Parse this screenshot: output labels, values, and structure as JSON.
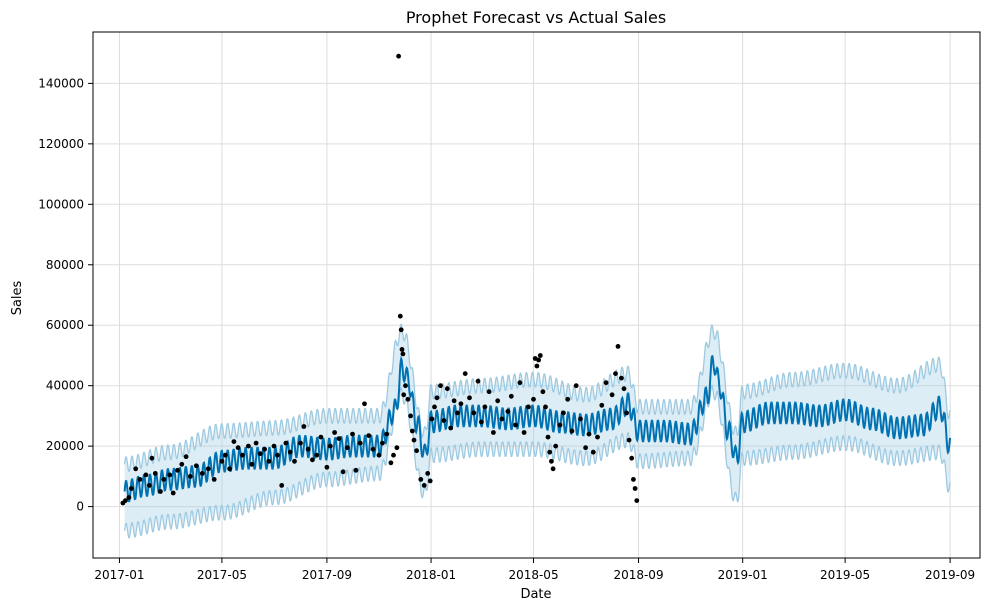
{
  "chart_data": {
    "type": "line",
    "title": "Prophet Forecast vs Actual Sales",
    "xlabel": "Date",
    "ylabel": "Sales",
    "x_ticks": [
      "2017-01",
      "2017-05",
      "2017-09",
      "2018-01",
      "2018-05",
      "2018-09",
      "2019-01",
      "2019-05",
      "2019-09"
    ],
    "y_ticks": [
      "0",
      "20000",
      "40000",
      "60000",
      "80000",
      "100000",
      "120000",
      "140000"
    ],
    "xlim": [
      "2016-12-01",
      "2019-10-06"
    ],
    "ylim": [
      -17000,
      157000
    ],
    "grid": true,
    "colors": {
      "forecast": "#0072B2",
      "interval": "#9ecae1",
      "actual": "#000000",
      "grid": "#dddddd"
    },
    "series": [
      {
        "name": "",
        "kind": "forecast-line",
        "x": [
          "2017-01-07",
          "2017-02-01",
          "2017-03-01",
          "2017-04-01",
          "2017-05-01",
          "2017-06-01",
          "2017-07-01",
          "2017-08-01",
          "2017-09-01",
          "2017-10-01",
          "2017-11-01",
          "2017-11-20",
          "2017-11-28",
          "2017-12-05",
          "2017-12-15",
          "2017-12-25",
          "2018-01-01",
          "2018-02-01",
          "2018-03-01",
          "2018-04-01",
          "2018-05-01",
          "2018-06-01",
          "2018-07-01",
          "2018-08-01",
          "2018-08-20",
          "2018-09-01",
          "2018-10-01",
          "2018-11-01",
          "2018-11-20",
          "2018-11-28",
          "2018-12-05",
          "2018-12-15",
          "2018-12-25",
          "2019-01-01",
          "2019-02-01",
          "2019-03-01",
          "2019-04-01",
          "2019-05-01",
          "2019-06-01",
          "2019-07-01",
          "2019-08-01",
          "2019-08-20",
          "2019-09-01"
        ],
        "y": [
          5000,
          7000,
          9000,
          10000,
          15000,
          16000,
          16000,
          20000,
          19000,
          20000,
          20000,
          32000,
          46000,
          42000,
          28000,
          17000,
          28000,
          30000,
          30000,
          29000,
          30000,
          28000,
          27000,
          29000,
          34000,
          25000,
          25000,
          24000,
          36000,
          48000,
          40000,
          25000,
          16000,
          28000,
          31000,
          31000,
          30000,
          32000,
          29000,
          26000,
          27000,
          33000,
          20000
        ]
      },
      {
        "name": "",
        "kind": "interval-upper",
        "x": [
          "2017-01-07",
          "2017-03-01",
          "2017-05-01",
          "2017-07-01",
          "2017-09-01",
          "2017-11-01",
          "2017-11-28",
          "2017-12-25",
          "2018-01-01",
          "2018-03-01",
          "2018-05-01",
          "2018-07-01",
          "2018-08-20",
          "2018-09-01",
          "2018-11-01",
          "2018-11-28",
          "2018-12-25",
          "2019-01-01",
          "2019-03-01",
          "2019-05-01",
          "2019-07-01",
          "2019-08-20",
          "2019-09-01"
        ],
        "y": [
          14000,
          18000,
          25000,
          26000,
          30000,
          30000,
          58000,
          24000,
          38000,
          40000,
          42000,
          37000,
          44000,
          33000,
          33000,
          58000,
          24000,
          38000,
          42000,
          45000,
          40000,
          47000,
          30000
        ]
      },
      {
        "name": "",
        "kind": "interval-lower",
        "x": [
          "2017-01-07",
          "2017-03-01",
          "2017-05-01",
          "2017-07-01",
          "2017-09-01",
          "2017-11-01",
          "2017-11-28",
          "2017-12-25",
          "2018-01-01",
          "2018-03-01",
          "2018-05-01",
          "2018-07-01",
          "2018-08-20",
          "2018-09-01",
          "2018-11-01",
          "2018-11-28",
          "2018-12-25",
          "2019-01-01",
          "2019-03-01",
          "2019-05-01",
          "2019-07-01",
          "2019-08-20",
          "2019-09-01"
        ],
        "y": [
          -8000,
          -5000,
          -2000,
          3000,
          9000,
          11000,
          37000,
          4000,
          17000,
          19000,
          19000,
          16000,
          22000,
          15000,
          16000,
          38000,
          2000,
          16000,
          18000,
          21000,
          16000,
          18000,
          6000
        ]
      },
      {
        "name": "",
        "kind": "actual-points",
        "points": [
          [
            "2017-01-05",
            1200
          ],
          [
            "2017-01-08",
            2000
          ],
          [
            "2017-01-12",
            3000
          ],
          [
            "2017-01-15",
            6000
          ],
          [
            "2017-01-20",
            12500
          ],
          [
            "2017-01-25",
            9000
          ],
          [
            "2017-02-01",
            10500
          ],
          [
            "2017-02-05",
            7000
          ],
          [
            "2017-02-08",
            16000
          ],
          [
            "2017-02-12",
            11000
          ],
          [
            "2017-02-18",
            5000
          ],
          [
            "2017-02-22",
            9000
          ],
          [
            "2017-03-01",
            10500
          ],
          [
            "2017-03-05",
            4500
          ],
          [
            "2017-03-10",
            12000
          ],
          [
            "2017-03-15",
            14000
          ],
          [
            "2017-03-20",
            16500
          ],
          [
            "2017-03-25",
            10000
          ],
          [
            "2017-04-01",
            13500
          ],
          [
            "2017-04-08",
            11000
          ],
          [
            "2017-04-15",
            12500
          ],
          [
            "2017-04-22",
            9000
          ],
          [
            "2017-05-01",
            15000
          ],
          [
            "2017-05-05",
            17000
          ],
          [
            "2017-05-10",
            12500
          ],
          [
            "2017-05-15",
            21500
          ],
          [
            "2017-05-20",
            19500
          ],
          [
            "2017-05-25",
            17000
          ],
          [
            "2017-06-01",
            20000
          ],
          [
            "2017-06-05",
            14000
          ],
          [
            "2017-06-10",
            21000
          ],
          [
            "2017-06-15",
            17500
          ],
          [
            "2017-06-20",
            19000
          ],
          [
            "2017-06-25",
            15000
          ],
          [
            "2017-07-01",
            20000
          ],
          [
            "2017-07-05",
            17000
          ],
          [
            "2017-07-10",
            7000
          ],
          [
            "2017-07-15",
            21000
          ],
          [
            "2017-07-20",
            18000
          ],
          [
            "2017-07-25",
            15000
          ],
          [
            "2017-08-01",
            21000
          ],
          [
            "2017-08-05",
            26500
          ],
          [
            "2017-08-10",
            19000
          ],
          [
            "2017-08-15",
            15500
          ],
          [
            "2017-08-20",
            17000
          ],
          [
            "2017-08-25",
            23000
          ],
          [
            "2017-09-01",
            13000
          ],
          [
            "2017-09-05",
            20000
          ],
          [
            "2017-09-10",
            24500
          ],
          [
            "2017-09-15",
            22500
          ],
          [
            "2017-09-20",
            11500
          ],
          [
            "2017-09-25",
            19500
          ],
          [
            "2017-10-01",
            24000
          ],
          [
            "2017-10-05",
            12000
          ],
          [
            "2017-10-10",
            21000
          ],
          [
            "2017-10-15",
            34000
          ],
          [
            "2017-10-20",
            23500
          ],
          [
            "2017-10-25",
            19000
          ],
          [
            "2017-11-01",
            17000
          ],
          [
            "2017-11-05",
            21000
          ],
          [
            "2017-11-10",
            24000
          ],
          [
            "2017-11-15",
            14500
          ],
          [
            "2017-11-18",
            17000
          ],
          [
            "2017-11-22",
            19500
          ],
          [
            "2017-11-24",
            149000
          ],
          [
            "2017-11-26",
            63000
          ],
          [
            "2017-11-27",
            58500
          ],
          [
            "2017-11-28",
            52000
          ],
          [
            "2017-11-29",
            50500
          ],
          [
            "2017-11-30",
            37000
          ],
          [
            "2017-12-02",
            40000
          ],
          [
            "2017-12-05",
            35500
          ],
          [
            "2017-12-08",
            30000
          ],
          [
            "2017-12-10",
            25000
          ],
          [
            "2017-12-12",
            22000
          ],
          [
            "2017-12-15",
            18500
          ],
          [
            "2017-12-20",
            9000
          ],
          [
            "2017-12-24",
            7000
          ],
          [
            "2017-12-28",
            11000
          ],
          [
            "2017-12-31",
            8500
          ],
          [
            "2018-01-02",
            29000
          ],
          [
            "2018-01-05",
            33000
          ],
          [
            "2018-01-08",
            36000
          ],
          [
            "2018-01-12",
            40000
          ],
          [
            "2018-01-16",
            28500
          ],
          [
            "2018-01-20",
            39000
          ],
          [
            "2018-01-24",
            26000
          ],
          [
            "2018-01-28",
            35000
          ],
          [
            "2018-02-01",
            31000
          ],
          [
            "2018-02-05",
            34000
          ],
          [
            "2018-02-10",
            44000
          ],
          [
            "2018-02-15",
            36000
          ],
          [
            "2018-02-20",
            31000
          ],
          [
            "2018-02-25",
            41500
          ],
          [
            "2018-03-01",
            28000
          ],
          [
            "2018-03-05",
            33000
          ],
          [
            "2018-03-10",
            38000
          ],
          [
            "2018-03-15",
            24500
          ],
          [
            "2018-03-20",
            35000
          ],
          [
            "2018-03-25",
            29000
          ],
          [
            "2018-04-01",
            31500
          ],
          [
            "2018-04-05",
            36500
          ],
          [
            "2018-04-10",
            27000
          ],
          [
            "2018-04-15",
            41000
          ],
          [
            "2018-04-20",
            24500
          ],
          [
            "2018-04-25",
            33000
          ],
          [
            "2018-05-01",
            35500
          ],
          [
            "2018-05-03",
            49000
          ],
          [
            "2018-05-05",
            46500
          ],
          [
            "2018-05-07",
            48500
          ],
          [
            "2018-05-09",
            50000
          ],
          [
            "2018-05-12",
            38000
          ],
          [
            "2018-05-15",
            33000
          ],
          [
            "2018-05-18",
            23000
          ],
          [
            "2018-05-20",
            18000
          ],
          [
            "2018-05-22",
            15000
          ],
          [
            "2018-05-24",
            12500
          ],
          [
            "2018-05-27",
            20000
          ],
          [
            "2018-06-01",
            27000
          ],
          [
            "2018-06-05",
            31000
          ],
          [
            "2018-06-10",
            35500
          ],
          [
            "2018-06-15",
            25000
          ],
          [
            "2018-06-20",
            40000
          ],
          [
            "2018-06-25",
            29000
          ],
          [
            "2018-07-01",
            19500
          ],
          [
            "2018-07-05",
            24000
          ],
          [
            "2018-07-10",
            18000
          ],
          [
            "2018-07-15",
            23000
          ],
          [
            "2018-07-20",
            33500
          ],
          [
            "2018-07-25",
            41000
          ],
          [
            "2018-08-01",
            37000
          ],
          [
            "2018-08-05",
            44000
          ],
          [
            "2018-08-08",
            53000
          ],
          [
            "2018-08-12",
            42500
          ],
          [
            "2018-08-15",
            39000
          ],
          [
            "2018-08-18",
            31000
          ],
          [
            "2018-08-21",
            22000
          ],
          [
            "2018-08-24",
            16000
          ],
          [
            "2018-08-26",
            9000
          ],
          [
            "2018-08-28",
            6000
          ],
          [
            "2018-08-30",
            2000
          ]
        ]
      }
    ]
  }
}
